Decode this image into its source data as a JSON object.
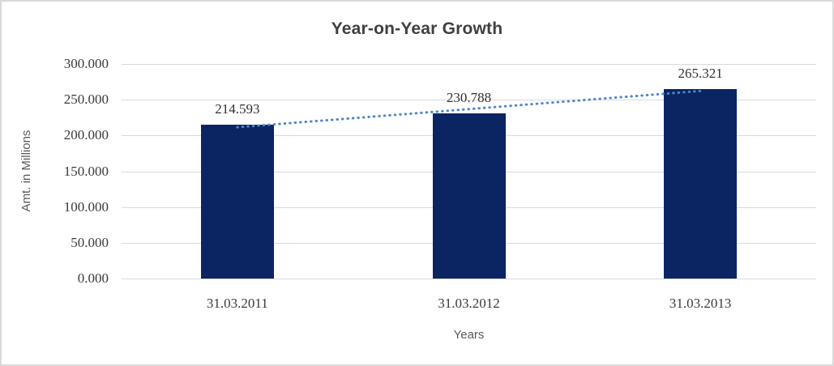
{
  "chart_data": {
    "type": "bar",
    "title": "Year-on-Year Growth",
    "xlabel": "Years",
    "ylabel": "Amt. in Millions",
    "categories": [
      "31.03.2011",
      "31.03.2012",
      "31.03.2013"
    ],
    "values": [
      214.593,
      230.788,
      265.321
    ],
    "value_labels": [
      "214.593",
      "230.788",
      "265.321"
    ],
    "ylim": [
      0,
      300
    ],
    "yticks": [
      0,
      50,
      100,
      150,
      200,
      250,
      300
    ],
    "ytick_labels": [
      "0.000",
      "50.000",
      "100.000",
      "150.000",
      "200.000",
      "250.000",
      "300.000"
    ],
    "grid": true,
    "legend": false,
    "trendline": {
      "type": "linear",
      "style": "dotted",
      "color": "#4e86c8"
    },
    "colors": {
      "bar": "#0a2561",
      "gridline": "#d9d9d9",
      "title_text": "#3f3f3f",
      "axis_title_text": "#595959",
      "tick_text": "#3a3a3a",
      "chart_border": "#d9d9d9",
      "background": "#ffffff"
    }
  }
}
